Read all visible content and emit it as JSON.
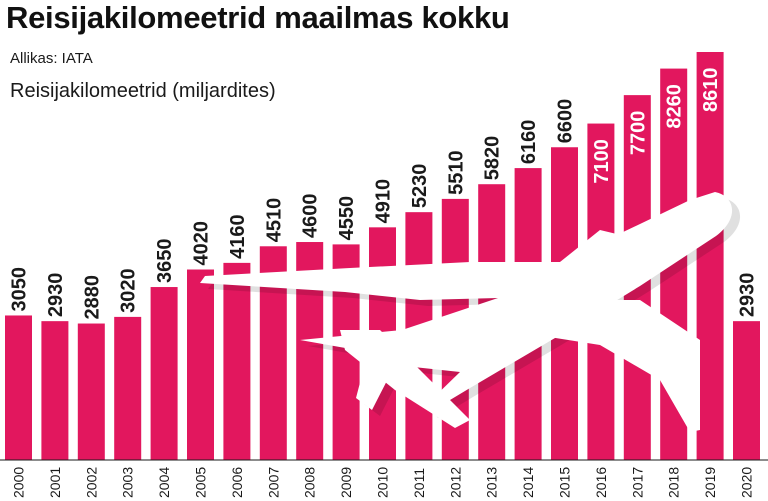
{
  "title": "Reisijakilomeetrid maailmas kokku",
  "source": "Allikas: IATA",
  "chart_data": {
    "type": "bar",
    "title": "Reisijakilomeetrid maailmas kokku",
    "ylabel": "Reisijakilomeetrid (miljardites)",
    "xlabel": "",
    "categories": [
      "2000",
      "2001",
      "2002",
      "2003",
      "2004",
      "2005",
      "2006",
      "2007",
      "2008",
      "2009",
      "2010",
      "2011",
      "2012",
      "2013",
      "2014",
      "2015",
      "2016",
      "2017",
      "2018",
      "2019",
      "2020"
    ],
    "values": [
      3050,
      2930,
      2880,
      3020,
      3650,
      4020,
      4160,
      4510,
      4600,
      4550,
      4910,
      5230,
      5510,
      5820,
      6160,
      6600,
      7100,
      7700,
      8260,
      8610,
      2930
    ],
    "ylim": [
      0,
      9000
    ],
    "grid": false,
    "colors": {
      "bar": "#e2175e",
      "label_dark": "#1a1a1a",
      "label_light": "#ffffff",
      "decoration": "#ffffff"
    },
    "decoration_icon": "airplane-icon"
  }
}
